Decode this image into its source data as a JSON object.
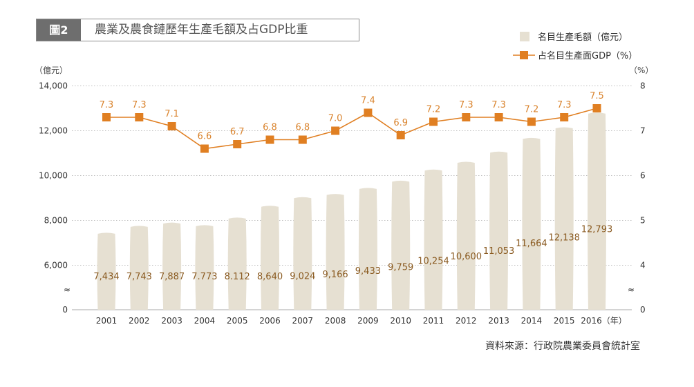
{
  "header": {
    "tag": "圖2",
    "title": "農業及農食鏈歷年生產毛額及占GDP比重"
  },
  "axes": {
    "left_unit": "（億元）",
    "right_unit": "（%）",
    "break_symbol": "≈",
    "year_suffix": "（年）"
  },
  "legend": {
    "bars": "名目生產毛額（億元）",
    "line": "占名目生產面GDP（%）"
  },
  "source": "資料來源：行政院農業委員會統計室",
  "colors": {
    "bar": "#e6e0d2",
    "line": "#e07f22",
    "label_bar": "#8a5a20",
    "label_line": "#d9822b",
    "grid": "#a9a9a9"
  },
  "chart_data": {
    "type": "bar",
    "categories": [
      "2001",
      "2002",
      "2003",
      "2004",
      "2005",
      "2006",
      "2007",
      "2008",
      "2009",
      "2010",
      "2011",
      "2012",
      "2013",
      "2014",
      "2015",
      "2016"
    ],
    "bar_labels": [
      "7,434",
      "7,743",
      "7,887",
      "7.773",
      "8.112",
      "8,640",
      "9,024",
      "9,166",
      "9,433",
      "9,759",
      "10,254",
      "10,600",
      "11,053",
      "11,664",
      "12,138",
      "12,793"
    ],
    "line_labels": [
      "7.3",
      "7.3",
      "7.1",
      "6.6",
      "6.7",
      "6.8",
      "6.8",
      "7.0",
      "7.4",
      "6.9",
      "7.2",
      "7.3",
      "7.3",
      "7.2",
      "7.3",
      "7.5"
    ],
    "series": [
      {
        "name": "名目生產毛額（億元）",
        "type": "bar",
        "axis": "left",
        "values": [
          7434,
          7743,
          7887,
          7773,
          8112,
          8640,
          9024,
          9166,
          9433,
          9759,
          10254,
          10600,
          11053,
          11664,
          12138,
          12793
        ]
      },
      {
        "name": "占名目生產面GDP（%）",
        "type": "line",
        "axis": "right",
        "values": [
          7.3,
          7.3,
          7.1,
          6.6,
          6.7,
          6.8,
          6.8,
          7.0,
          7.4,
          6.9,
          7.2,
          7.3,
          7.3,
          7.2,
          7.3,
          7.5
        ]
      }
    ],
    "left_axis": {
      "ticks": [
        "0",
        "6,000",
        "8,000",
        "10,000",
        "12,000",
        "14,000"
      ],
      "tick_values": [
        0,
        6000,
        8000,
        10000,
        12000,
        14000
      ],
      "broken_between": [
        0,
        6000
      ]
    },
    "right_axis": {
      "ticks": [
        "0",
        "4",
        "5",
        "6",
        "7",
        "8"
      ],
      "tick_values": [
        0,
        4,
        5,
        6,
        7,
        8
      ],
      "broken_between": [
        0,
        4
      ]
    },
    "grid": true,
    "legend_position": "top-right"
  }
}
